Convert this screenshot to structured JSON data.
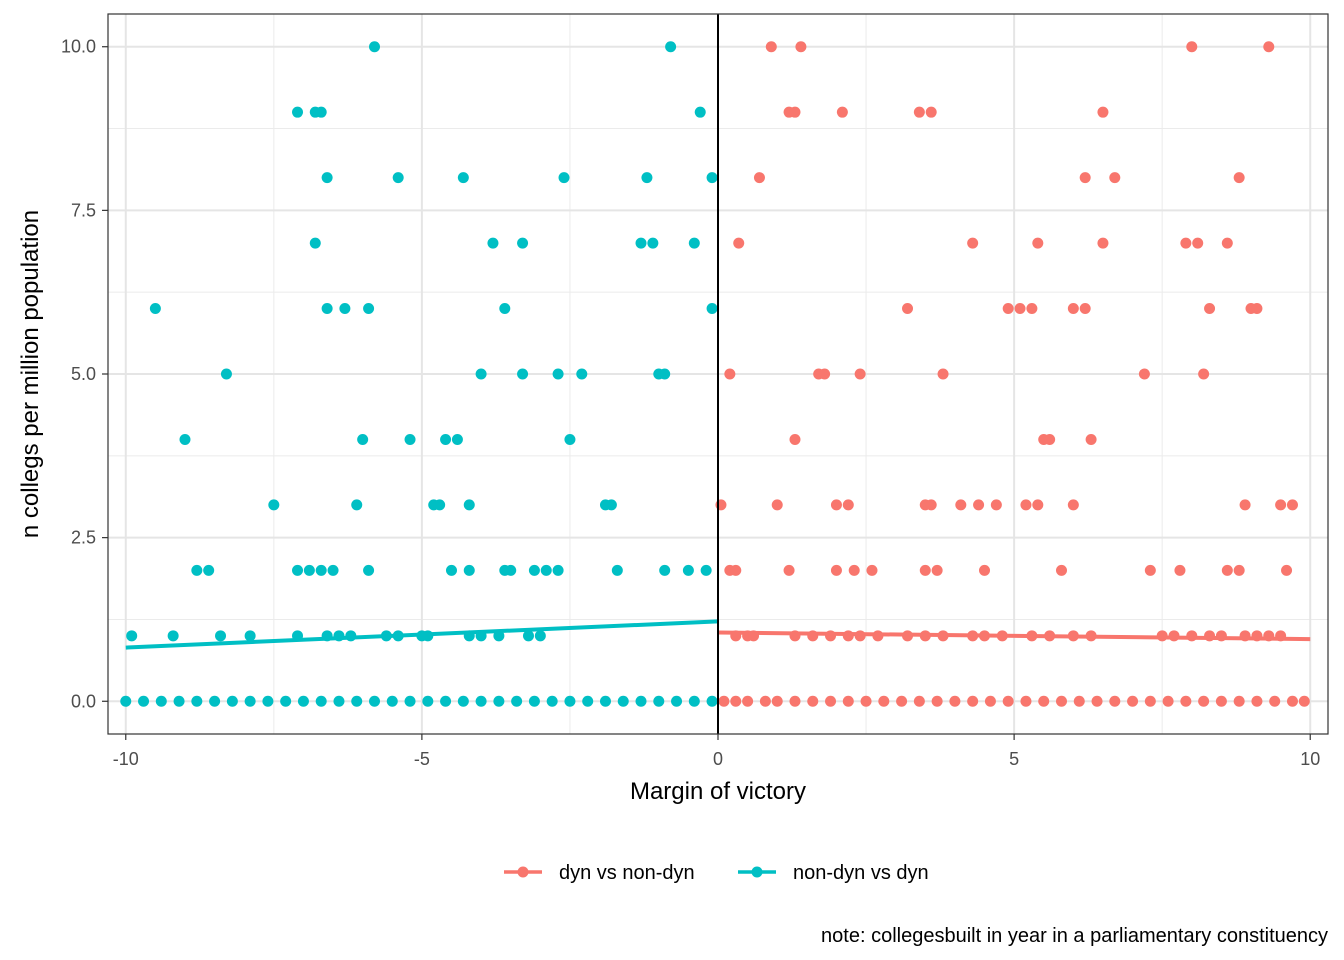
{
  "chart_data": {
    "type": "scatter",
    "xlabel": "Margin of victory",
    "ylabel": "n collegs per million population",
    "xlim": [
      -10.3,
      10.3
    ],
    "ylim": [
      -0.5,
      10.5
    ],
    "x_ticks": [
      -10,
      -5,
      0,
      5,
      10
    ],
    "x_tick_labels": [
      "-10",
      "-5",
      "0",
      "5",
      "10"
    ],
    "y_ticks": [
      0,
      2.5,
      5,
      7.5,
      10
    ],
    "y_tick_labels": [
      "0.0",
      "2.5",
      "5.0",
      "7.5",
      "10.0"
    ],
    "grid": true,
    "cutoff_line_x": 0,
    "legend_position": "bottom",
    "note": "note: collegesbuilt in year in a parliamentary constituency",
    "series": [
      {
        "name": "dyn vs non-dyn",
        "color": "#F8766D",
        "fit": {
          "x": [
            0,
            10
          ],
          "y": [
            1.05,
            0.95
          ]
        },
        "points": [
          [
            0.9,
            10
          ],
          [
            1.4,
            10
          ],
          [
            8.0,
            10
          ],
          [
            9.3,
            10
          ],
          [
            1.2,
            9
          ],
          [
            1.3,
            9
          ],
          [
            2.1,
            9
          ],
          [
            3.4,
            9
          ],
          [
            3.6,
            9
          ],
          [
            6.5,
            9
          ],
          [
            0.7,
            8
          ],
          [
            6.2,
            8
          ],
          [
            6.7,
            8
          ],
          [
            8.8,
            8
          ],
          [
            0.35,
            7
          ],
          [
            4.3,
            7
          ],
          [
            5.4,
            7
          ],
          [
            6.5,
            7
          ],
          [
            7.9,
            7
          ],
          [
            8.1,
            7
          ],
          [
            8.6,
            7
          ],
          [
            3.2,
            6
          ],
          [
            4.9,
            6
          ],
          [
            5.1,
            6
          ],
          [
            5.3,
            6
          ],
          [
            6.0,
            6
          ],
          [
            6.2,
            6
          ],
          [
            8.3,
            6
          ],
          [
            9.0,
            6
          ],
          [
            9.1,
            6
          ],
          [
            0.2,
            5
          ],
          [
            1.7,
            5
          ],
          [
            1.8,
            5
          ],
          [
            2.4,
            5
          ],
          [
            3.8,
            5
          ],
          [
            7.2,
            5
          ],
          [
            8.2,
            5
          ],
          [
            1.3,
            4
          ],
          [
            5.5,
            4
          ],
          [
            5.6,
            4
          ],
          [
            6.3,
            4
          ],
          [
            0.05,
            3
          ],
          [
            1.0,
            3
          ],
          [
            2.0,
            3
          ],
          [
            2.2,
            3
          ],
          [
            3.5,
            3
          ],
          [
            3.6,
            3
          ],
          [
            4.1,
            3
          ],
          [
            4.4,
            3
          ],
          [
            4.7,
            3
          ],
          [
            5.2,
            3
          ],
          [
            5.4,
            3
          ],
          [
            6.0,
            3
          ],
          [
            8.9,
            3
          ],
          [
            9.5,
            3
          ],
          [
            9.7,
            3
          ],
          [
            0.2,
            2
          ],
          [
            0.3,
            2
          ],
          [
            1.2,
            2
          ],
          [
            2.0,
            2
          ],
          [
            2.3,
            2
          ],
          [
            2.6,
            2
          ],
          [
            3.5,
            2
          ],
          [
            3.7,
            2
          ],
          [
            4.5,
            2
          ],
          [
            5.8,
            2
          ],
          [
            7.3,
            2
          ],
          [
            7.8,
            2
          ],
          [
            8.6,
            2
          ],
          [
            8.8,
            2
          ],
          [
            9.6,
            2
          ],
          [
            0.3,
            1
          ],
          [
            0.5,
            1
          ],
          [
            0.6,
            1
          ],
          [
            1.3,
            1
          ],
          [
            1.6,
            1
          ],
          [
            1.9,
            1
          ],
          [
            2.2,
            1
          ],
          [
            2.4,
            1
          ],
          [
            2.7,
            1
          ],
          [
            3.2,
            1
          ],
          [
            3.5,
            1
          ],
          [
            3.8,
            1
          ],
          [
            4.3,
            1
          ],
          [
            4.5,
            1
          ],
          [
            4.8,
            1
          ],
          [
            5.3,
            1
          ],
          [
            5.6,
            1
          ],
          [
            6.0,
            1
          ],
          [
            6.3,
            1
          ],
          [
            7.5,
            1
          ],
          [
            7.7,
            1
          ],
          [
            8.0,
            1
          ],
          [
            8.3,
            1
          ],
          [
            8.5,
            1
          ],
          [
            8.9,
            1
          ],
          [
            9.1,
            1
          ],
          [
            9.3,
            1
          ],
          [
            9.5,
            1
          ],
          [
            0.1,
            0
          ],
          [
            0.3,
            0
          ],
          [
            0.5,
            0
          ],
          [
            0.8,
            0
          ],
          [
            1.0,
            0
          ],
          [
            1.3,
            0
          ],
          [
            1.6,
            0
          ],
          [
            1.9,
            0
          ],
          [
            2.2,
            0
          ],
          [
            2.5,
            0
          ],
          [
            2.8,
            0
          ],
          [
            3.1,
            0
          ],
          [
            3.4,
            0
          ],
          [
            3.7,
            0
          ],
          [
            4.0,
            0
          ],
          [
            4.3,
            0
          ],
          [
            4.6,
            0
          ],
          [
            4.9,
            0
          ],
          [
            5.2,
            0
          ],
          [
            5.5,
            0
          ],
          [
            5.8,
            0
          ],
          [
            6.1,
            0
          ],
          [
            6.4,
            0
          ],
          [
            6.7,
            0
          ],
          [
            7.0,
            0
          ],
          [
            7.3,
            0
          ],
          [
            7.6,
            0
          ],
          [
            7.9,
            0
          ],
          [
            8.2,
            0
          ],
          [
            8.5,
            0
          ],
          [
            8.8,
            0
          ],
          [
            9.1,
            0
          ],
          [
            9.4,
            0
          ],
          [
            9.7,
            0
          ],
          [
            9.9,
            0
          ]
        ]
      },
      {
        "name": "non-dyn vs dyn",
        "color": "#00BFC4",
        "fit": {
          "x": [
            -10,
            0
          ],
          "y": [
            0.82,
            1.22
          ]
        },
        "points": [
          [
            -5.8,
            10
          ],
          [
            -0.8,
            10
          ],
          [
            -7.1,
            9
          ],
          [
            -6.8,
            9
          ],
          [
            -6.7,
            9
          ],
          [
            -0.3,
            9
          ],
          [
            -6.6,
            8
          ],
          [
            -5.4,
            8
          ],
          [
            -4.3,
            8
          ],
          [
            -2.6,
            8
          ],
          [
            -1.2,
            8
          ],
          [
            -0.1,
            8
          ],
          [
            -6.8,
            7
          ],
          [
            -3.8,
            7
          ],
          [
            -3.3,
            7
          ],
          [
            -1.3,
            7
          ],
          [
            -1.1,
            7
          ],
          [
            -0.4,
            7
          ],
          [
            -9.5,
            6
          ],
          [
            -6.6,
            6
          ],
          [
            -6.3,
            6
          ],
          [
            -5.9,
            6
          ],
          [
            -3.6,
            6
          ],
          [
            -0.1,
            6
          ],
          [
            -8.3,
            5
          ],
          [
            -4.0,
            5
          ],
          [
            -3.3,
            5
          ],
          [
            -2.7,
            5
          ],
          [
            -2.3,
            5
          ],
          [
            -1.0,
            5
          ],
          [
            -0.9,
            5
          ],
          [
            -9.0,
            4
          ],
          [
            -6.0,
            4
          ],
          [
            -5.2,
            4
          ],
          [
            -4.6,
            4
          ],
          [
            -4.4,
            4
          ],
          [
            -2.5,
            4
          ],
          [
            -7.5,
            3
          ],
          [
            -6.1,
            3
          ],
          [
            -4.8,
            3
          ],
          [
            -4.7,
            3
          ],
          [
            -4.2,
            3
          ],
          [
            -1.9,
            3
          ],
          [
            -1.8,
            3
          ],
          [
            -8.8,
            2
          ],
          [
            -8.6,
            2
          ],
          [
            -7.1,
            2
          ],
          [
            -6.9,
            2
          ],
          [
            -6.7,
            2
          ],
          [
            -6.5,
            2
          ],
          [
            -5.9,
            2
          ],
          [
            -4.5,
            2
          ],
          [
            -4.2,
            2
          ],
          [
            -3.6,
            2
          ],
          [
            -3.5,
            2
          ],
          [
            -3.1,
            2
          ],
          [
            -2.9,
            2
          ],
          [
            -2.7,
            2
          ],
          [
            -1.7,
            2
          ],
          [
            -0.9,
            2
          ],
          [
            -0.5,
            2
          ],
          [
            -0.2,
            2
          ],
          [
            -9.9,
            1
          ],
          [
            -9.2,
            1
          ],
          [
            -8.4,
            1
          ],
          [
            -7.9,
            1
          ],
          [
            -7.1,
            1
          ],
          [
            -6.6,
            1
          ],
          [
            -6.4,
            1
          ],
          [
            -6.2,
            1
          ],
          [
            -5.6,
            1
          ],
          [
            -5.4,
            1
          ],
          [
            -5.0,
            1
          ],
          [
            -4.9,
            1
          ],
          [
            -4.2,
            1
          ],
          [
            -4.0,
            1
          ],
          [
            -3.7,
            1
          ],
          [
            -3.2,
            1
          ],
          [
            -3.0,
            1
          ],
          [
            -10.0,
            0
          ],
          [
            -9.7,
            0
          ],
          [
            -9.4,
            0
          ],
          [
            -9.1,
            0
          ],
          [
            -8.8,
            0
          ],
          [
            -8.5,
            0
          ],
          [
            -8.2,
            0
          ],
          [
            -7.9,
            0
          ],
          [
            -7.6,
            0
          ],
          [
            -7.3,
            0
          ],
          [
            -7.0,
            0
          ],
          [
            -6.7,
            0
          ],
          [
            -6.4,
            0
          ],
          [
            -6.1,
            0
          ],
          [
            -5.8,
            0
          ],
          [
            -5.5,
            0
          ],
          [
            -5.2,
            0
          ],
          [
            -4.9,
            0
          ],
          [
            -4.6,
            0
          ],
          [
            -4.3,
            0
          ],
          [
            -4.0,
            0
          ],
          [
            -3.7,
            0
          ],
          [
            -3.4,
            0
          ],
          [
            -3.1,
            0
          ],
          [
            -2.8,
            0
          ],
          [
            -2.5,
            0
          ],
          [
            -2.2,
            0
          ],
          [
            -1.9,
            0
          ],
          [
            -1.6,
            0
          ],
          [
            -1.3,
            0
          ],
          [
            -1.0,
            0
          ],
          [
            -0.7,
            0
          ],
          [
            -0.4,
            0
          ],
          [
            -0.1,
            0
          ]
        ]
      }
    ]
  }
}
